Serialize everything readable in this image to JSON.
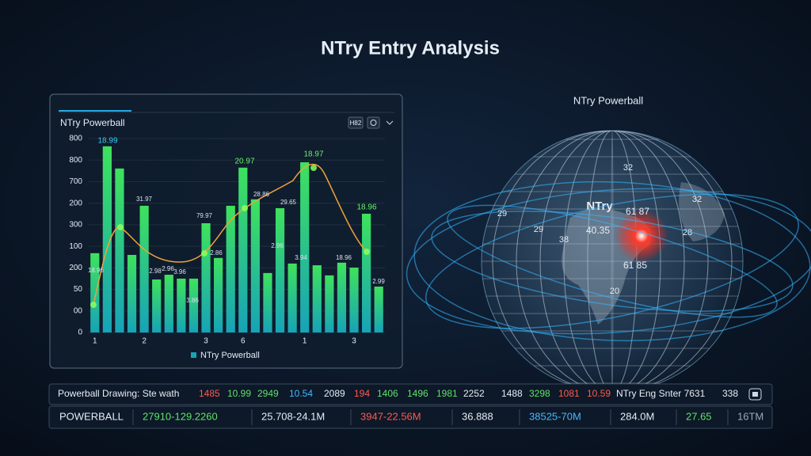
{
  "header": {
    "title": "NTry Entry Analysis"
  },
  "chart_data": {
    "type": "bar",
    "title": "NTry Powerball",
    "badge": "H82",
    "categories": [
      "1",
      null,
      null,
      null,
      "2",
      null,
      null,
      null,
      null,
      "3",
      null,
      null,
      "6",
      null,
      null,
      null,
      null,
      "1",
      null,
      null,
      null,
      "3",
      null,
      null
    ],
    "series": [
      {
        "name": "NTry Powerball",
        "color": "#3ee25c",
        "values": [
          368,
          864,
          761,
          360,
          588,
          246,
          268,
          250,
          250,
          507,
          346,
          588,
          765,
          618,
          276,
          577,
          320,
          790,
          312,
          265,
          324,
          301,
          551,
          213
        ]
      }
    ],
    "color_bottom": "#17a3b8",
    "ylim": [
      0,
      900
    ],
    "yticks": [
      0,
      {
        "value": 100,
        "label": "00"
      },
      {
        "value": 200,
        "label": "50"
      },
      {
        "value": 300,
        "label": "200"
      },
      {
        "value": 400,
        "label": "100"
      },
      {
        "value": 500,
        "label": "300"
      },
      {
        "value": 600,
        "label": "200"
      },
      700,
      800,
      {
        "value": 900,
        "label": "800"
      }
    ],
    "grid": true,
    "legend": "bottom",
    "annotations": [
      {
        "text": "18.99",
        "color": "#3cc9f0"
      },
      {
        "text": "31.97",
        "color": "#d8e2ee"
      },
      {
        "text": "79.97",
        "color": "#d8e2ee"
      },
      {
        "text": "20.97",
        "color": "#6bf06b"
      },
      {
        "text": "28.86",
        "color": "#d8e2ee"
      },
      {
        "text": "29.65",
        "color": "#d8e2ee"
      },
      {
        "text": "18.97",
        "color": "#6bf06b"
      },
      {
        "text": "18.96",
        "color": "#6bf06b"
      },
      {
        "text": "18.96",
        "color": "#d8e2ee"
      },
      {
        "text": "2.98",
        "color": "#d8e2ee"
      },
      {
        "text": "2.96",
        "color": "#d8e2ee"
      },
      {
        "text": "3.96",
        "color": "#d8e2ee"
      },
      {
        "text": "2.86",
        "color": "#d8e2ee"
      },
      {
        "text": "3.86",
        "color": "#d8e2ee"
      },
      {
        "text": "2.96",
        "color": "#d8e2ee"
      },
      {
        "text": "3.94",
        "color": "#d8e2ee"
      },
      {
        "text": "18.96",
        "color": "#d8e2ee"
      },
      {
        "text": "2.99",
        "color": "#d8e2ee"
      }
    ]
  },
  "globe": {
    "title": "NTry Powerball",
    "labels": [
      "NTry",
      "61 87",
      "40.35",
      "61 85",
      "32",
      "32",
      "29",
      "38",
      "20",
      "28",
      "29"
    ]
  },
  "ticker": {
    "rows": [
      {
        "label": "Powerball Drawing: Ste wath",
        "items": [
          {
            "text": "1485",
            "color": "#ff5a4e"
          },
          {
            "text": "10.99",
            "color": "#5ee36a"
          },
          {
            "text": "2949",
            "color": "#5ee36a"
          },
          {
            "text": "10.54",
            "color": "#45b8ff"
          },
          {
            "text": "2089",
            "color": "#e6edf5"
          },
          {
            "text": "194",
            "color": "#ff5a4e"
          },
          {
            "text": "1406",
            "color": "#5ee36a"
          },
          {
            "text": "1496",
            "color": "#5ee36a"
          },
          {
            "text": "1981",
            "color": "#5ee36a"
          },
          {
            "text": "2252",
            "color": "#e6edf5"
          },
          {
            "text": "1488",
            "color": "#e6edf5"
          },
          {
            "text": "3298",
            "color": "#5ee36a"
          },
          {
            "text": "1081",
            "color": "#ff5a4e"
          },
          {
            "text": "10.59",
            "color": "#ff5a4e"
          },
          {
            "text": "NTry Eng Snter 7631",
            "color": "#e6edf5"
          },
          {
            "text": "338",
            "color": "#e6edf5"
          }
        ]
      },
      {
        "label": "POWERBALL",
        "items": [
          {
            "text": "27910-129.2260",
            "color": "#5ee36a"
          },
          {
            "text": "25.708-24.1M",
            "color": "#e6edf5"
          },
          {
            "text": "3947-22.56M",
            "color": "#ff5a4e"
          },
          {
            "text": "36.888",
            "color": "#e6edf5"
          },
          {
            "text": "38525-70M",
            "color": "#45b8ff"
          },
          {
            "text": "284.0M",
            "color": "#e6edf5"
          },
          {
            "text": "27.65",
            "color": "#5ee36a"
          },
          {
            "text": "16TM",
            "color": "#9aa8b8"
          }
        ]
      }
    ]
  }
}
